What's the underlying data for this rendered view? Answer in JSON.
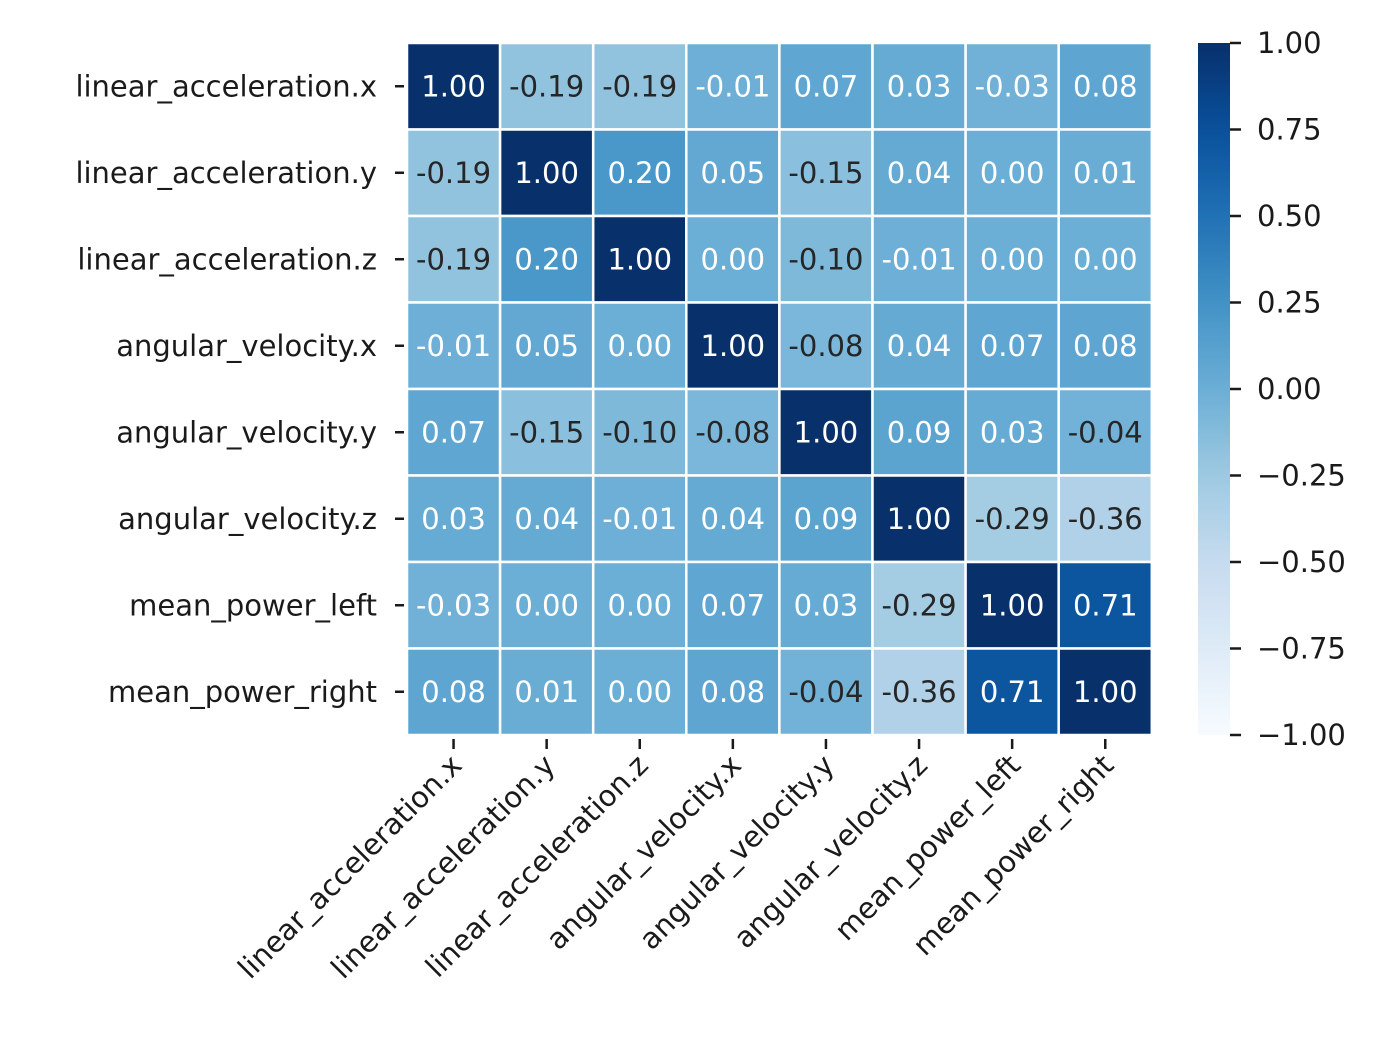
{
  "chart_data": {
    "type": "heatmap",
    "title": "",
    "xlabel": "",
    "ylabel": "",
    "labels": [
      "linear_acceleration.x",
      "linear_acceleration.y",
      "linear_acceleration.z",
      "angular_velocity.x",
      "angular_velocity.y",
      "angular_velocity.z",
      "mean_power_left",
      "mean_power_right"
    ],
    "matrix": [
      [
        1.0,
        -0.19,
        -0.19,
        -0.01,
        0.07,
        0.03,
        -0.03,
        0.08
      ],
      [
        -0.19,
        1.0,
        0.2,
        0.05,
        -0.15,
        0.04,
        0.0,
        0.01
      ],
      [
        -0.19,
        0.2,
        1.0,
        0.0,
        -0.1,
        -0.01,
        0.0,
        0.0
      ],
      [
        -0.01,
        0.05,
        0.0,
        1.0,
        -0.08,
        0.04,
        0.07,
        0.08
      ],
      [
        0.07,
        -0.15,
        -0.1,
        -0.08,
        1.0,
        0.09,
        0.03,
        -0.04
      ],
      [
        0.03,
        0.04,
        -0.01,
        0.04,
        0.09,
        1.0,
        -0.29,
        -0.36
      ],
      [
        -0.03,
        0.0,
        0.0,
        0.07,
        0.03,
        -0.29,
        1.0,
        0.71
      ],
      [
        0.08,
        0.01,
        0.0,
        0.08,
        -0.04,
        -0.36,
        0.71,
        1.0
      ]
    ],
    "value_format": "0.00",
    "colormap": "Blues",
    "vmin": -1.0,
    "vmax": 1.0,
    "colorbar": {
      "ticks": [
        1.0,
        0.75,
        0.5,
        0.25,
        0.0,
        -0.25,
        -0.5,
        -0.75,
        -1.0
      ],
      "tick_labels": [
        "1.00",
        "0.75",
        "0.50",
        "0.25",
        "0.00",
        "−0.25",
        "−0.50",
        "−0.75",
        "−1.00"
      ]
    },
    "grid": true,
    "gridline_color": "#ffffff",
    "colors": {
      "low": "#f7fbff",
      "high": "#08306b",
      "text_light": "#ffffff",
      "text_dark": "#262626"
    }
  }
}
